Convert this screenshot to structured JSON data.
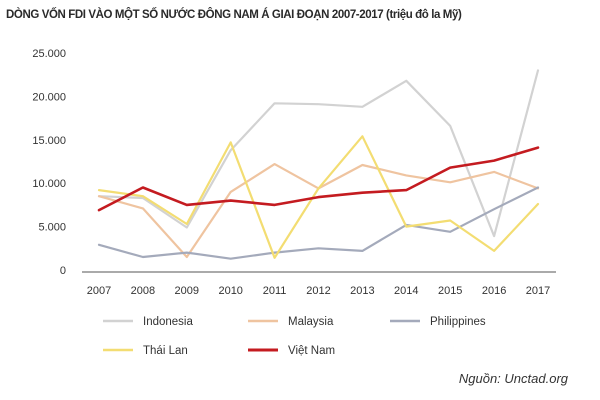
{
  "chart_data": {
    "type": "line",
    "title": "DÒNG VỐN FDI VÀO MỘT SỐ NƯỚC ĐÔNG NAM Á GIAI ĐOẠN 2007-2017 (triệu đô la Mỹ)",
    "x": [
      "2007",
      "2008",
      "2009",
      "2010",
      "2011",
      "2012",
      "2013",
      "2014",
      "2015",
      "2016",
      "2017"
    ],
    "y_ticks": [
      "0",
      "5.000",
      "10.000",
      "15.000",
      "20.000",
      "25.000"
    ],
    "ylim": [
      0,
      25000
    ],
    "grid": false,
    "legend_position": "bottom",
    "series": [
      {
        "name": "Indonesia",
        "color": "#d2d2d2",
        "values": [
          8500,
          8300,
          4900,
          13800,
          19200,
          19100,
          18800,
          21800,
          16600,
          3900,
          23000
        ]
      },
      {
        "name": "Malaysia",
        "color": "#efc4a0",
        "values": [
          8500,
          7100,
          1500,
          9000,
          12200,
          9400,
          12100,
          10900,
          10100,
          11300,
          9400
        ]
      },
      {
        "name": "Philippines",
        "color": "#a4aabb",
        "values": [
          2900,
          1500,
          2000,
          1300,
          2000,
          2500,
          2200,
          5200,
          4400,
          7000,
          9500
        ]
      },
      {
        "name": "Thái Lan",
        "color": "#f3dd72",
        "values": [
          9200,
          8500,
          5300,
          14700,
          1400,
          9400,
          15400,
          5000,
          5700,
          2200,
          7600
        ]
      },
      {
        "name": "Việt Nam",
        "color": "#c41b20",
        "values": [
          6900,
          9500,
          7500,
          8000,
          7500,
          8400,
          8900,
          9200,
          11800,
          12600,
          14100
        ]
      }
    ]
  },
  "source": "Nguồn: Unctad.org"
}
